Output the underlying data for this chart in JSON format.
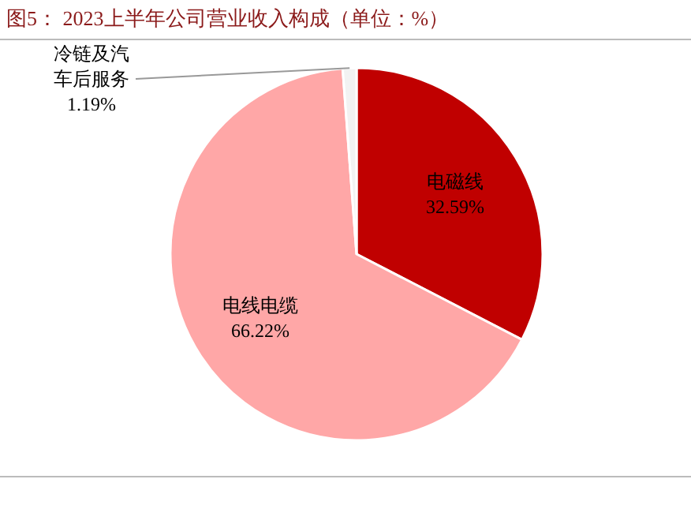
{
  "chart_data": {
    "type": "pie",
    "title": "图5：  2023上半年公司营业收入构成（单位：%）",
    "categories": [
      "电磁线",
      "电线电缆",
      "冷链及汽车后服务"
    ],
    "values": [
      32.59,
      66.22,
      1.19
    ],
    "colors": [
      "#c00000",
      "#ffa7a7",
      "#f2f2f2"
    ],
    "value_labels": [
      "32.59%",
      "66.22%",
      "1.19%"
    ]
  }
}
